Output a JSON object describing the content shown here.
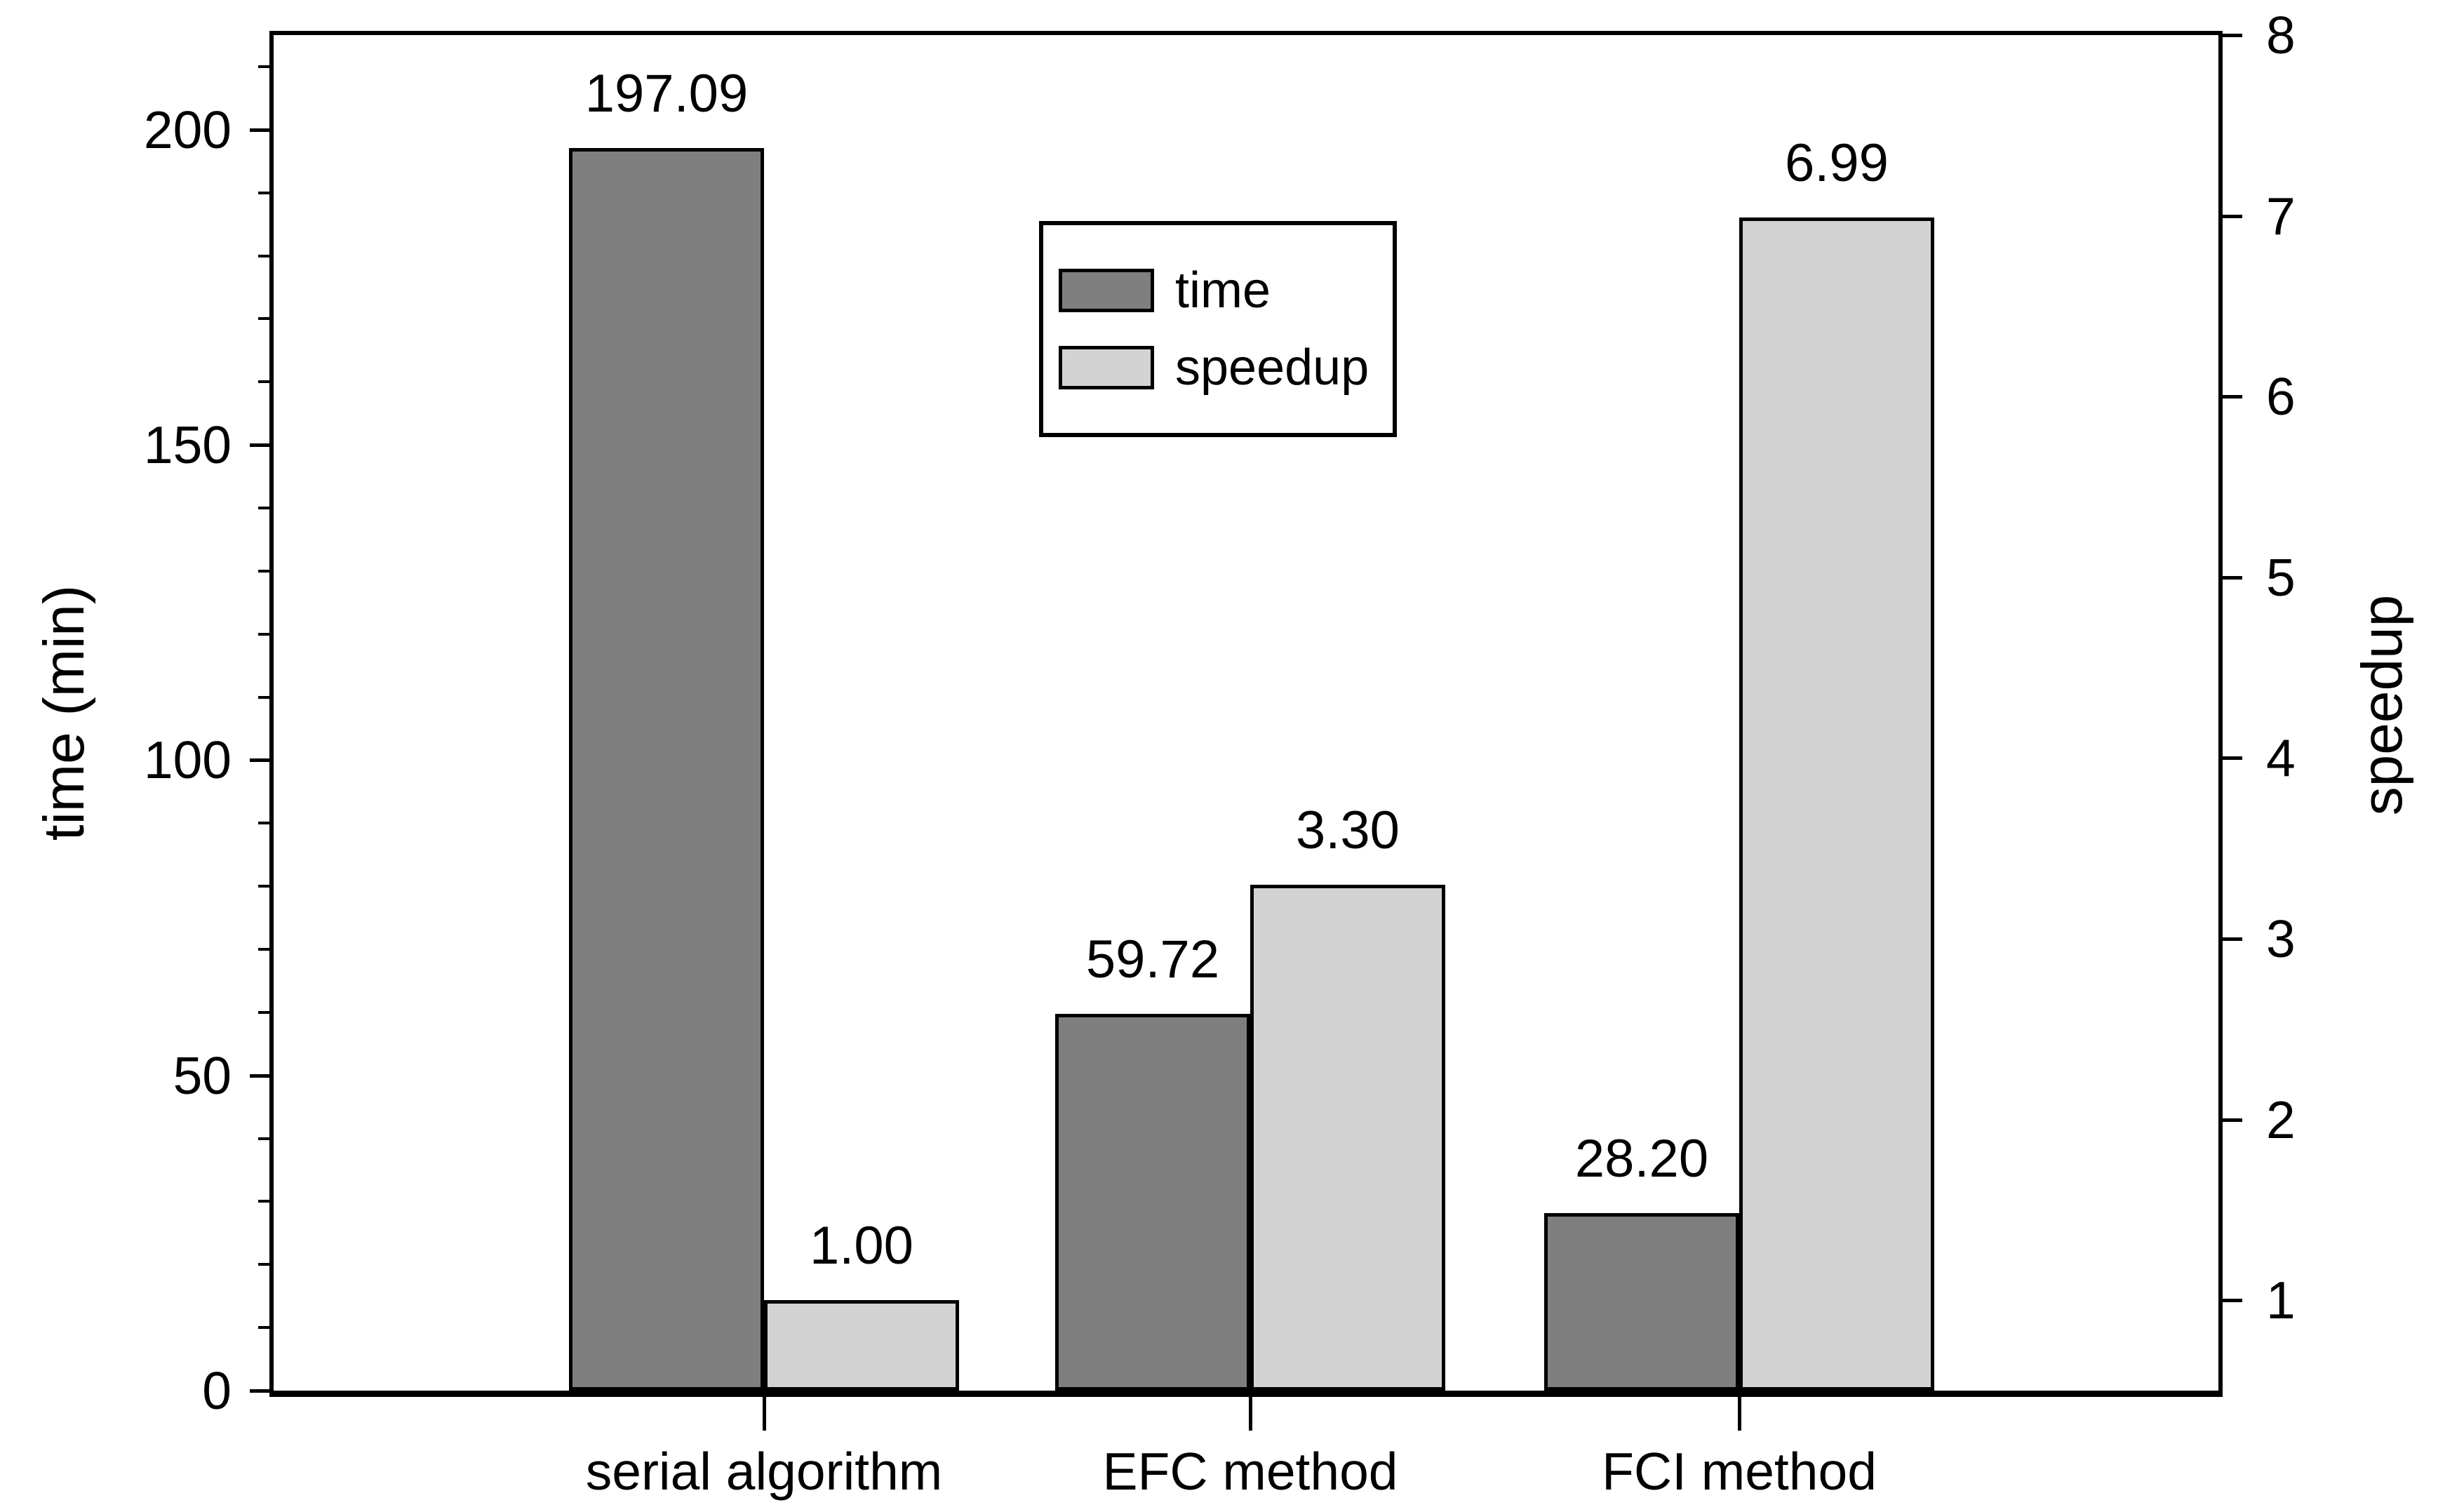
{
  "chart_data": {
    "type": "bar",
    "title": "",
    "categories": [
      "serial algorithm",
      "EFC method",
      "FCI method"
    ],
    "series": [
      {
        "name": "time",
        "axis": "left",
        "color": "#7f7f7f",
        "border_color": "#000000",
        "values": [
          197.09,
          59.72,
          28.2
        ]
      },
      {
        "name": "speedup",
        "axis": "right",
        "color": "#d3d3d3",
        "border_color": "#000000",
        "values": [
          1.0,
          3.3,
          6.99
        ]
      }
    ],
    "value_labels": {
      "time": [
        "197.09",
        "59.72",
        "28.20"
      ],
      "speedup": [
        "1.00",
        "3.30",
        "6.99"
      ]
    },
    "left_axis": {
      "label": "time (min)",
      "min": 0,
      "max": 215,
      "major_ticks": [
        0,
        50,
        100,
        150,
        200
      ],
      "minor_tick_step": 10
    },
    "right_axis": {
      "label": "speedup",
      "min": 0.5,
      "max": 8,
      "major_ticks": [
        1,
        2,
        3,
        4,
        5,
        6,
        7,
        8
      ]
    },
    "legend": {
      "position": "upper-center",
      "entries": [
        {
          "label": "time",
          "color": "#7f7f7f"
        },
        {
          "label": "speedup",
          "color": "#d3d3d3"
        }
      ]
    },
    "grid": false,
    "background": "#ffffff",
    "frame_color": "#000000"
  }
}
